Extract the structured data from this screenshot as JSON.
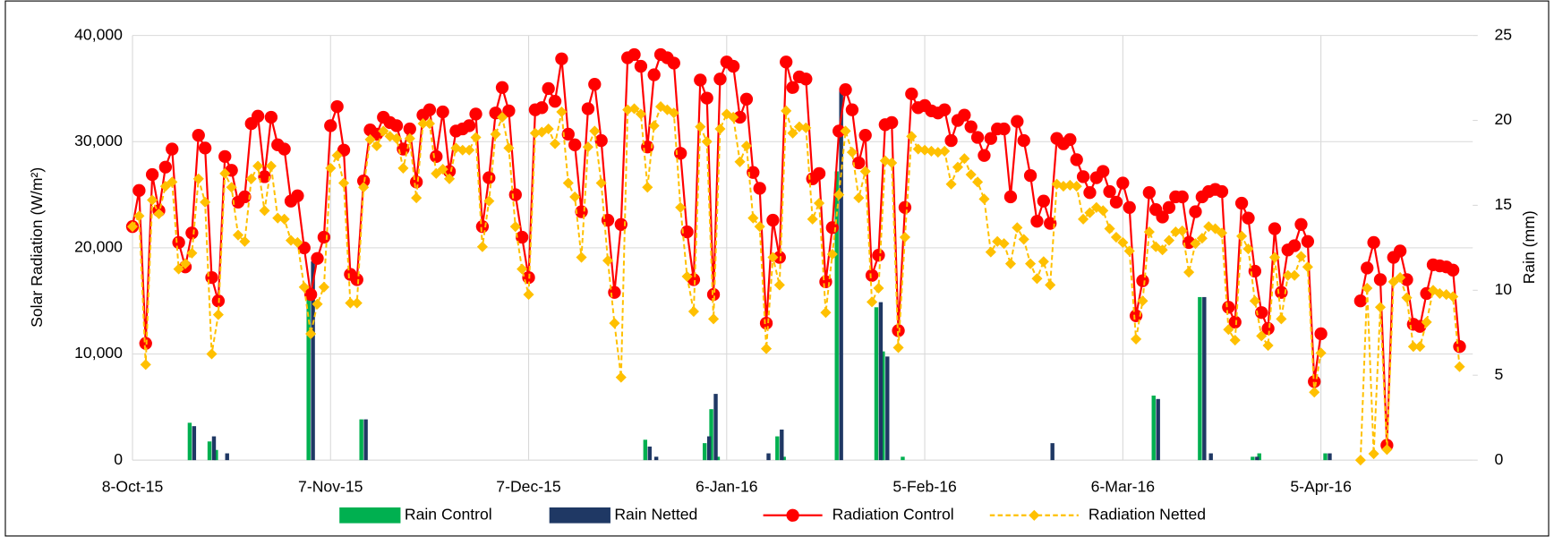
{
  "chart_data": {
    "type": "combo",
    "y_label": "Solar Radiation (W/m²)",
    "y2_label": "Rain (mm)",
    "xlim": [
      "2015-10-08",
      "2016-04-28"
    ],
    "xticks": [
      {
        "value": "2015-10-08",
        "label": "8-Oct-15"
      },
      {
        "value": "2015-11-07",
        "label": "7-Nov-15"
      },
      {
        "value": "2015-12-07",
        "label": "7-Dec-15"
      },
      {
        "value": "2016-01-06",
        "label": "6-Jan-16"
      },
      {
        "value": "2016-02-05",
        "label": "5-Feb-16"
      },
      {
        "value": "2016-03-06",
        "label": "6-Mar-16"
      },
      {
        "value": "2016-04-05",
        "label": "5-Apr-16"
      }
    ],
    "ylim": [
      0,
      40000
    ],
    "yticks": [
      0,
      {
        "value": 10000,
        "label": "10,000"
      },
      {
        "value": 20000,
        "label": "20,000"
      },
      {
        "value": 30000,
        "label": "30,000"
      },
      {
        "value": 40000,
        "label": "40,000"
      }
    ],
    "y2lim": [
      0,
      25
    ],
    "y2ticks": [
      0,
      5,
      10,
      15,
      20,
      25
    ],
    "grid": true,
    "x": [
      "2015-10-08",
      "2015-10-09",
      "2015-10-10",
      "2015-10-11",
      "2015-10-12",
      "2015-10-13",
      "2015-10-14",
      "2015-10-15",
      "2015-10-16",
      "2015-10-17",
      "2015-10-18",
      "2015-10-19",
      "2015-10-20",
      "2015-10-21",
      "2015-10-22",
      "2015-10-23",
      "2015-10-24",
      "2015-10-25",
      "2015-10-26",
      "2015-10-27",
      "2015-10-28",
      "2015-10-29",
      "2015-10-30",
      "2015-10-31",
      "2015-11-01",
      "2015-11-02",
      "2015-11-03",
      "2015-11-04",
      "2015-11-05",
      "2015-11-06",
      "2015-11-07",
      "2015-11-08",
      "2015-11-09",
      "2015-11-10",
      "2015-11-11",
      "2015-11-12",
      "2015-11-13",
      "2015-11-14",
      "2015-11-15",
      "2015-11-16",
      "2015-11-17",
      "2015-11-18",
      "2015-11-19",
      "2015-11-20",
      "2015-11-21",
      "2015-11-22",
      "2015-11-23",
      "2015-11-24",
      "2015-11-25",
      "2015-11-26",
      "2015-11-27",
      "2015-11-28",
      "2015-11-29",
      "2015-11-30",
      "2015-12-01",
      "2015-12-02",
      "2015-12-03",
      "2015-12-04",
      "2015-12-05",
      "2015-12-06",
      "2015-12-07",
      "2015-12-08",
      "2015-12-09",
      "2015-12-10",
      "2015-12-11",
      "2015-12-12",
      "2015-12-13",
      "2015-12-14",
      "2015-12-15",
      "2015-12-16",
      "2015-12-17",
      "2015-12-18",
      "2015-12-19",
      "2015-12-20",
      "2015-12-21",
      "2015-12-22",
      "2015-12-23",
      "2015-12-24",
      "2015-12-25",
      "2015-12-26",
      "2015-12-27",
      "2015-12-28",
      "2015-12-29",
      "2015-12-30",
      "2015-12-31",
      "2016-01-01",
      "2016-01-02",
      "2016-01-03",
      "2016-01-04",
      "2016-01-05",
      "2016-01-06",
      "2016-01-07",
      "2016-01-08",
      "2016-01-09",
      "2016-01-10",
      "2016-01-11",
      "2016-01-12",
      "2016-01-13",
      "2016-01-14",
      "2016-01-15",
      "2016-01-16",
      "2016-01-17",
      "2016-01-18",
      "2016-01-19",
      "2016-01-20",
      "2016-01-21",
      "2016-01-22",
      "2016-01-23",
      "2016-01-24",
      "2016-01-25",
      "2016-01-26",
      "2016-01-27",
      "2016-01-28",
      "2016-01-29",
      "2016-01-30",
      "2016-01-31",
      "2016-02-01",
      "2016-02-02",
      "2016-02-03",
      "2016-02-04",
      "2016-02-05",
      "2016-02-06",
      "2016-02-07",
      "2016-02-08",
      "2016-02-09",
      "2016-02-10",
      "2016-02-11",
      "2016-02-12",
      "2016-02-13",
      "2016-02-14",
      "2016-02-15",
      "2016-02-16",
      "2016-02-17",
      "2016-02-18",
      "2016-02-19",
      "2016-02-20",
      "2016-02-21",
      "2016-02-22",
      "2016-02-23",
      "2016-02-24",
      "2016-02-25",
      "2016-02-26",
      "2016-02-27",
      "2016-02-28",
      "2016-02-29",
      "2016-03-01",
      "2016-03-02",
      "2016-03-03",
      "2016-03-04",
      "2016-03-05",
      "2016-03-06",
      "2016-03-07",
      "2016-03-08",
      "2016-03-09",
      "2016-03-10",
      "2016-03-11",
      "2016-03-12",
      "2016-03-13",
      "2016-03-14",
      "2016-03-15",
      "2016-03-16",
      "2016-03-17",
      "2016-03-18",
      "2016-03-19",
      "2016-03-20",
      "2016-03-21",
      "2016-03-22",
      "2016-03-23",
      "2016-03-24",
      "2016-03-25",
      "2016-03-26",
      "2016-03-27",
      "2016-03-28",
      "2016-03-29",
      "2016-03-30",
      "2016-03-31",
      "2016-04-01",
      "2016-04-02",
      "2016-04-03",
      "2016-04-04",
      "2016-04-05",
      "2016-04-06",
      "2016-04-07",
      "2016-04-08",
      "2016-04-09",
      "2016-04-10",
      "2016-04-11",
      "2016-04-12",
      "2016-04-13",
      "2016-04-14",
      "2016-04-15",
      "2016-04-16",
      "2016-04-17",
      "2016-04-18",
      "2016-04-19",
      "2016-04-20",
      "2016-04-21",
      "2016-04-22",
      "2016-04-23",
      "2016-04-24",
      "2016-04-25",
      "2016-04-26"
    ],
    "series": [
      {
        "name": "Rain Control",
        "type": "bar",
        "axis": "y2",
        "color": "#00b050",
        "values": [
          0,
          0,
          0,
          0,
          0,
          0,
          0,
          0,
          0,
          2.2,
          0,
          0,
          1.1,
          0.6,
          0,
          0,
          0,
          0,
          0,
          0,
          0,
          0,
          0,
          0,
          0,
          0,
          0,
          9.8,
          0,
          0,
          0,
          0,
          0,
          0,
          0,
          2.4,
          0,
          0,
          0,
          0,
          0,
          0,
          0,
          0,
          0,
          0,
          0,
          0,
          0,
          0,
          0,
          0,
          0,
          0,
          0,
          0,
          0,
          0,
          0,
          0,
          0,
          0,
          0,
          0,
          0,
          0,
          0,
          0,
          0,
          0,
          0,
          0,
          0,
          0,
          0,
          0,
          0,
          0,
          1.2,
          0,
          0,
          0,
          0,
          0,
          0,
          0,
          0,
          1.0,
          3.0,
          0.2,
          0,
          0,
          0,
          0,
          0,
          0,
          0,
          0,
          1.4,
          0.2,
          0,
          0,
          0,
          0,
          0,
          0,
          0,
          17,
          0,
          0,
          0,
          0,
          0,
          9.0,
          6.4,
          0,
          0,
          0.2,
          0,
          0,
          0,
          0,
          0,
          0,
          0,
          0,
          0,
          0,
          0,
          0,
          0,
          0,
          0,
          0,
          0,
          0,
          0,
          0,
          0,
          0,
          0,
          0,
          0,
          0,
          0,
          0,
          0,
          0,
          0,
          0,
          0,
          0,
          0,
          0,
          0,
          3.8,
          0,
          0,
          0,
          0,
          0,
          0,
          9.6,
          0,
          0,
          0,
          0,
          0,
          0,
          0,
          0.2,
          0.4,
          0,
          0,
          0,
          0,
          0,
          0,
          0,
          0,
          0,
          0.4,
          0,
          0,
          0,
          0,
          0,
          0,
          0,
          0,
          0,
          0,
          0,
          0,
          0,
          0,
          0,
          0,
          0,
          0,
          0,
          0
        ]
      },
      {
        "name": "Rain Netted",
        "type": "bar",
        "axis": "y2",
        "color": "#1f3864",
        "values": [
          0,
          0,
          0,
          0,
          0,
          0,
          0,
          0,
          0,
          2.0,
          0,
          0,
          1.4,
          0,
          0.4,
          0,
          0,
          0,
          0,
          0,
          0,
          0,
          0,
          0,
          0,
          0,
          0,
          11.7,
          0,
          0,
          0,
          0,
          0,
          0,
          0,
          2.4,
          0,
          0,
          0,
          0,
          0,
          0,
          0,
          0,
          0,
          0,
          0,
          0,
          0,
          0,
          0,
          0,
          0,
          0,
          0,
          0,
          0,
          0,
          0,
          0,
          0,
          0,
          0,
          0,
          0,
          0,
          0,
          0,
          0,
          0,
          0,
          0,
          0,
          0,
          0,
          0,
          0,
          0,
          0.8,
          0.2,
          0,
          0,
          0,
          0,
          0,
          0,
          0,
          1.4,
          3.9,
          0,
          0,
          0,
          0,
          0,
          0,
          0,
          0.4,
          0,
          1.8,
          0,
          0,
          0,
          0,
          0,
          0,
          0,
          0,
          21.8,
          0,
          0,
          0,
          0,
          0,
          9.3,
          6.1,
          0,
          0,
          0,
          0,
          0,
          0,
          0,
          0,
          0,
          0,
          0,
          0,
          0,
          0,
          0,
          0,
          0,
          0,
          0,
          0,
          0,
          0,
          0,
          0,
          1.0,
          0,
          0,
          0,
          0,
          0,
          0,
          0,
          0,
          0,
          0,
          0,
          0,
          0,
          0,
          0,
          3.6,
          0,
          0,
          0,
          0,
          0,
          0,
          9.6,
          0.4,
          0,
          0,
          0,
          0,
          0,
          0,
          0.2,
          0,
          0,
          0,
          0,
          0,
          0,
          0,
          0,
          0,
          0,
          0.4,
          0,
          0,
          0,
          0,
          0,
          0,
          0,
          0,
          0,
          0,
          0,
          0,
          0,
          0,
          0,
          0,
          0,
          0,
          0,
          0
        ]
      },
      {
        "name": "Radiation Control",
        "type": "line",
        "marker": "circle",
        "dashed": false,
        "color": "#ff0000",
        "values": [
          22000,
          25400,
          11000,
          26900,
          23500,
          27600,
          29300,
          20500,
          18200,
          21400,
          30600,
          29400,
          17200,
          15000,
          28600,
          27300,
          24300,
          24800,
          31700,
          32400,
          26700,
          32300,
          29700,
          29300,
          24400,
          24900,
          20000,
          15600,
          19000,
          21000,
          31500,
          33300,
          29200,
          17500,
          17000,
          26300,
          31100,
          30700,
          32300,
          31800,
          31500,
          29300,
          31200,
          26200,
          32500,
          33000,
          28600,
          32800,
          27200,
          31000,
          31200,
          31500,
          32600,
          22000,
          26600,
          32700,
          35100,
          32900,
          25000,
          21000,
          17200,
          33000,
          33200,
          35000,
          33800,
          37800,
          30700,
          29700,
          23400,
          33100,
          35400,
          30100,
          22600,
          15800,
          22200,
          37900,
          38200,
          37100,
          29500,
          36300,
          38200,
          37900,
          37400,
          28900,
          21500,
          17000,
          35800,
          34100,
          15600,
          35900,
          37500,
          37100,
          32300,
          34000,
          27100,
          25600,
          12900,
          22600,
          19100,
          37500,
          35100,
          36100,
          35900,
          26500,
          27000,
          16800,
          21900,
          31000,
          34900,
          33000,
          28000,
          30600,
          17400,
          19300,
          31600,
          31800,
          12200,
          23800,
          34500,
          33200,
          33400,
          32900,
          32700,
          33000,
          30100,
          32000,
          32500,
          31400,
          30400,
          28700,
          30300,
          31200,
          31200,
          24800,
          31900,
          30100,
          26800,
          22500,
          24400,
          22300,
          30300,
          29800,
          30200,
          28300,
          26700,
          25200,
          26600,
          27200,
          25300,
          24300,
          26100,
          23800,
          13600,
          16900,
          25200,
          23600,
          22900,
          23800,
          24800,
          24800,
          20500,
          23400,
          24800,
          25300,
          25500,
          25300,
          14400,
          13000,
          24200,
          22800,
          17800,
          13900,
          12400,
          21800,
          15800,
          19800,
          20200,
          22200,
          20600,
          7400,
          11900,
          null,
          null,
          null,
          null,
          null,
          15000,
          18100,
          20500,
          17000,
          1400,
          19100,
          19700,
          17000,
          12800,
          12600,
          15700,
          18400,
          18300,
          18200,
          17900,
          10700
        ]
      },
      {
        "name": "Radiation Netted",
        "type": "line",
        "marker": "diamond",
        "dashed": true,
        "color": "#ffc000",
        "values": [
          22000,
          23000,
          9000,
          24500,
          23200,
          25800,
          26200,
          18000,
          18500,
          19500,
          26500,
          24300,
          10000,
          13700,
          27000,
          25700,
          21200,
          20600,
          26500,
          27700,
          23500,
          27700,
          22800,
          22700,
          20700,
          20500,
          16300,
          11900,
          14700,
          16300,
          27500,
          28700,
          26100,
          14800,
          14800,
          25700,
          30200,
          29600,
          31000,
          30500,
          30300,
          27500,
          30300,
          24700,
          31700,
          31700,
          27000,
          27400,
          26500,
          29400,
          29200,
          29200,
          30400,
          20100,
          24400,
          30700,
          32300,
          29400,
          22000,
          18000,
          15600,
          30800,
          30900,
          31200,
          29800,
          32800,
          26100,
          24800,
          19100,
          29500,
          31000,
          26100,
          18800,
          12900,
          7800,
          33000,
          33100,
          32600,
          25700,
          31500,
          33300,
          33000,
          32700,
          23800,
          17300,
          14000,
          31400,
          30000,
          13300,
          31200,
          32600,
          32300,
          28100,
          29600,
          22800,
          22000,
          10500,
          19100,
          16500,
          32900,
          30800,
          31400,
          31300,
          22700,
          24200,
          13900,
          19400,
          25000,
          31000,
          29000,
          24700,
          27200,
          14900,
          16200,
          28200,
          28000,
          10600,
          21000,
          30500,
          29300,
          29200,
          29100,
          29000,
          29100,
          26000,
          27600,
          28400,
          26900,
          26200,
          24600,
          19600,
          20600,
          20400,
          18500,
          21900,
          20800,
          18500,
          17100,
          18700,
          16500,
          26000,
          25800,
          25900,
          25800,
          22700,
          23300,
          23800,
          23500,
          21800,
          21000,
          20500,
          19700,
          11400,
          15000,
          21500,
          20100,
          19800,
          20700,
          21500,
          21600,
          17700,
          20400,
          20900,
          22000,
          21800,
          21400,
          12300,
          11300,
          21100,
          19900,
          15000,
          11700,
          10800,
          19100,
          13300,
          17400,
          17400,
          19200,
          18200,
          6400,
          10100,
          null,
          null,
          null,
          null,
          null,
          0,
          16200,
          600,
          14400,
          1000,
          16800,
          17200,
          15300,
          10700,
          10700,
          13000,
          16000,
          15700,
          15600,
          15400,
          8800
        ]
      }
    ]
  }
}
